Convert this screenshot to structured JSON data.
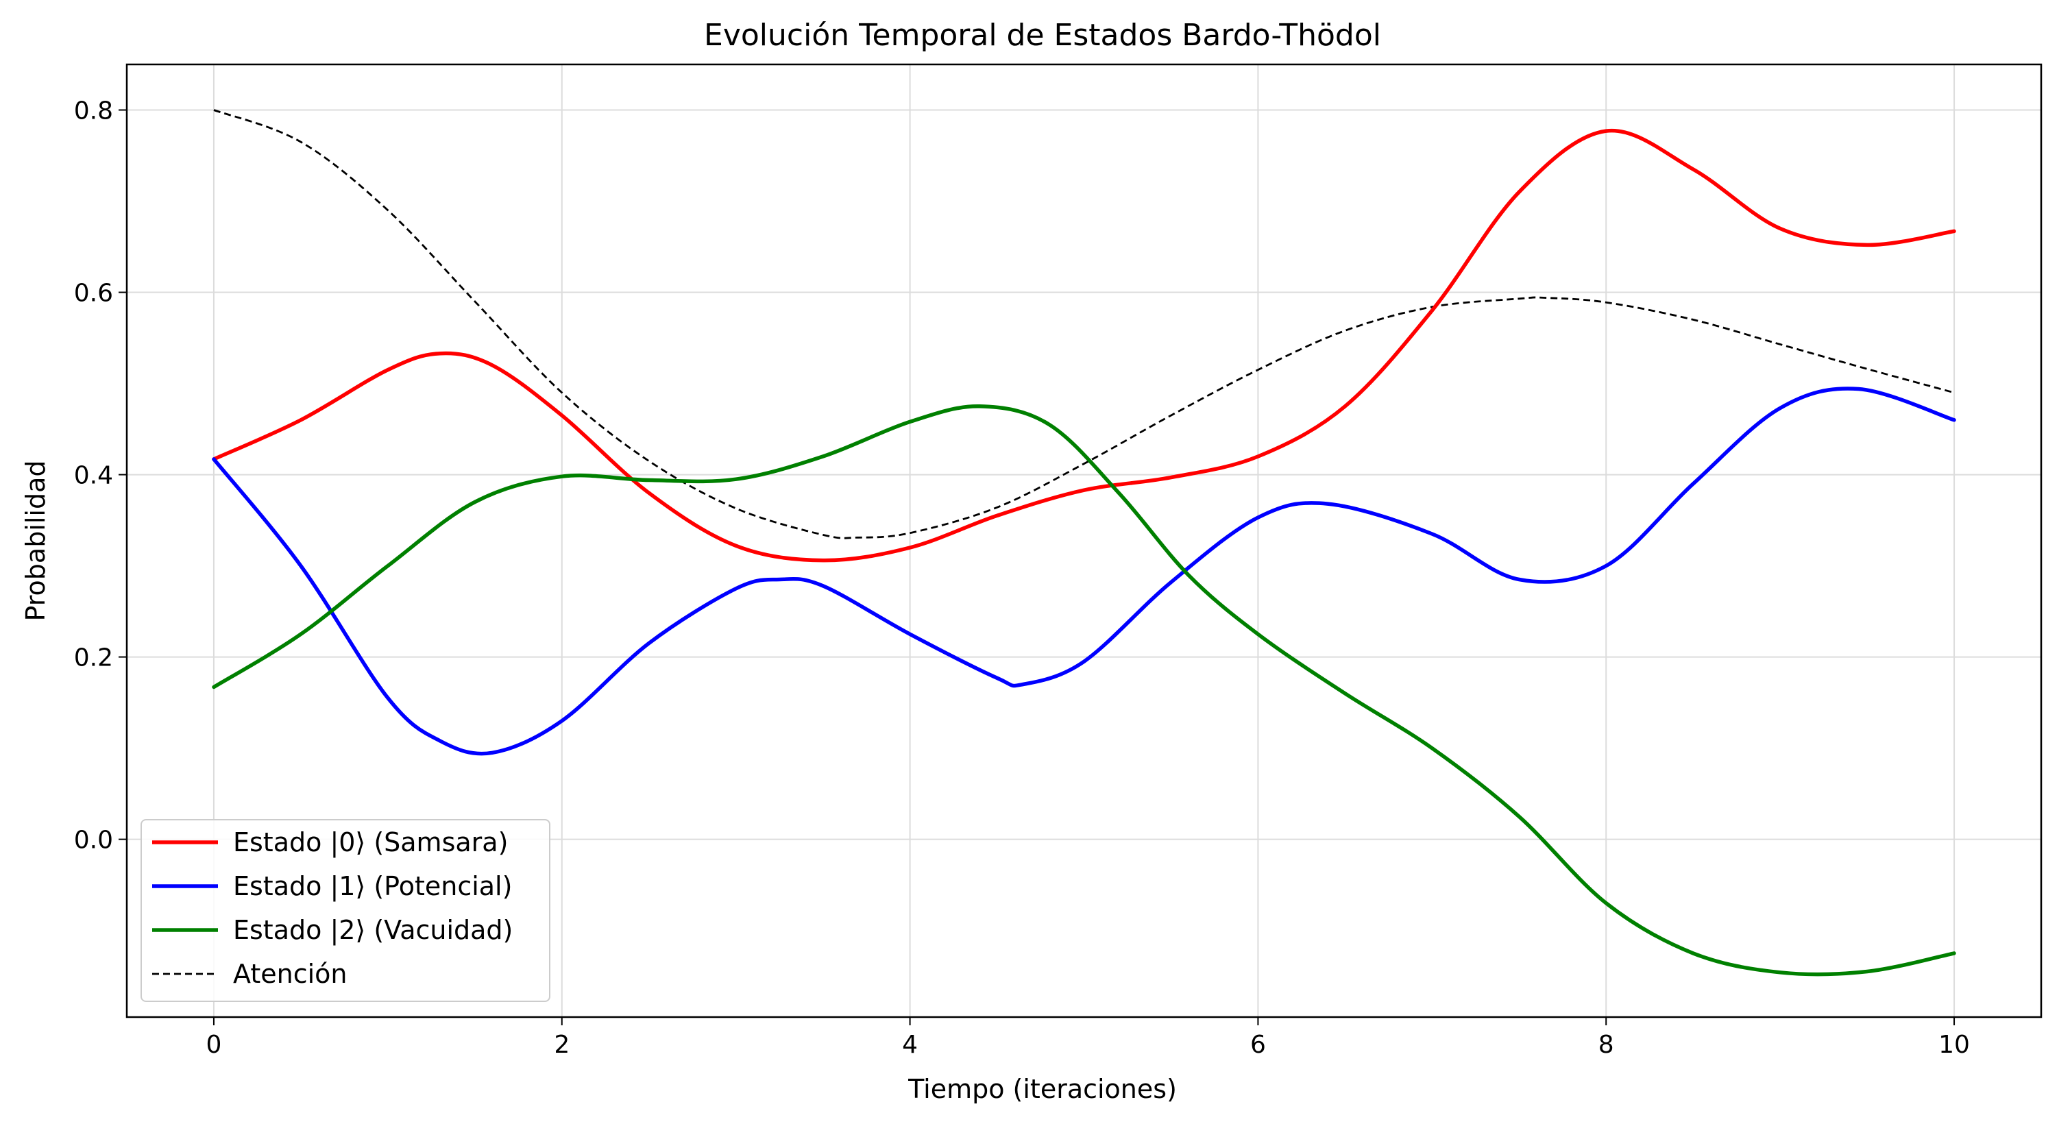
{
  "chart_data": {
    "type": "line",
    "title": "Evolución Temporal de Estados Bardo-Thödol",
    "xlabel": "Tiempo (iteraciones)",
    "ylabel": "Probabilidad",
    "xlim": [
      -0.5,
      10.5
    ],
    "ylim": [
      -0.195,
      0.85
    ],
    "xticks": [
      0,
      2,
      4,
      6,
      8,
      10
    ],
    "xtick_labels": [
      "0",
      "2",
      "4",
      "6",
      "8",
      "10"
    ],
    "yticks": [
      0.0,
      0.2,
      0.4,
      0.6,
      0.8
    ],
    "ytick_labels": [
      "0.0",
      "0.2",
      "0.4",
      "0.6",
      "0.8"
    ],
    "grid": true,
    "legend_position": "lower-left",
    "series": [
      {
        "name": "Estado |0⟩ (Samsara)",
        "color": "#ff0000",
        "style": "solid",
        "x": [
          0,
          0.5,
          1,
          1.3,
          1.6,
          2,
          2.5,
          3,
          3.5,
          4,
          4.5,
          5,
          5.5,
          6,
          6.5,
          7,
          7.5,
          8,
          8.5,
          9,
          9.5,
          10
        ],
        "y": [
          0.417,
          0.46,
          0.515,
          0.533,
          0.52,
          0.465,
          0.38,
          0.322,
          0.306,
          0.32,
          0.355,
          0.383,
          0.397,
          0.42,
          0.475,
          0.58,
          0.71,
          0.777,
          0.735,
          0.67,
          0.652,
          0.667
        ]
      },
      {
        "name": "Estado |1⟩ (Potencial)",
        "color": "#0000ff",
        "style": "solid",
        "x": [
          0,
          0.5,
          1,
          1.3,
          1.6,
          2,
          2.5,
          3,
          3.25,
          3.5,
          4,
          4.5,
          4.65,
          5,
          5.5,
          6,
          6.4,
          7,
          7.5,
          8,
          8.5,
          9,
          9.45,
          10
        ],
        "y": [
          0.417,
          0.3,
          0.155,
          0.108,
          0.095,
          0.13,
          0.215,
          0.275,
          0.285,
          0.278,
          0.225,
          0.177,
          0.17,
          0.195,
          0.282,
          0.353,
          0.368,
          0.335,
          0.285,
          0.3,
          0.39,
          0.473,
          0.494,
          0.46
        ]
      },
      {
        "name": "Estado |2⟩ (Vacuidad)",
        "color": "#008000",
        "style": "solid",
        "x": [
          0,
          0.5,
          1,
          1.5,
          2,
          2.5,
          3,
          3.5,
          4,
          4.4,
          4.8,
          5.2,
          5.6,
          6,
          6.5,
          7,
          7.5,
          8,
          8.5,
          9,
          9.5,
          10
        ],
        "y": [
          0.167,
          0.225,
          0.3,
          0.37,
          0.398,
          0.394,
          0.395,
          0.42,
          0.458,
          0.475,
          0.455,
          0.38,
          0.29,
          0.225,
          0.16,
          0.1,
          0.025,
          -0.07,
          -0.125,
          -0.146,
          -0.145,
          -0.125
        ]
      },
      {
        "name": "Atención",
        "color": "#000000",
        "style": "dashed",
        "x": [
          0,
          0.5,
          1,
          1.5,
          2,
          2.5,
          3,
          3.5,
          3.7,
          4,
          4.5,
          5,
          5.5,
          6,
          6.5,
          7,
          7.5,
          7.65,
          8,
          8.5,
          9,
          9.5,
          10
        ],
        "y": [
          0.8,
          0.765,
          0.69,
          0.59,
          0.49,
          0.415,
          0.363,
          0.334,
          0.331,
          0.336,
          0.364,
          0.412,
          0.465,
          0.515,
          0.558,
          0.584,
          0.593,
          0.594,
          0.589,
          0.57,
          0.543,
          0.516,
          0.49
        ]
      }
    ]
  }
}
